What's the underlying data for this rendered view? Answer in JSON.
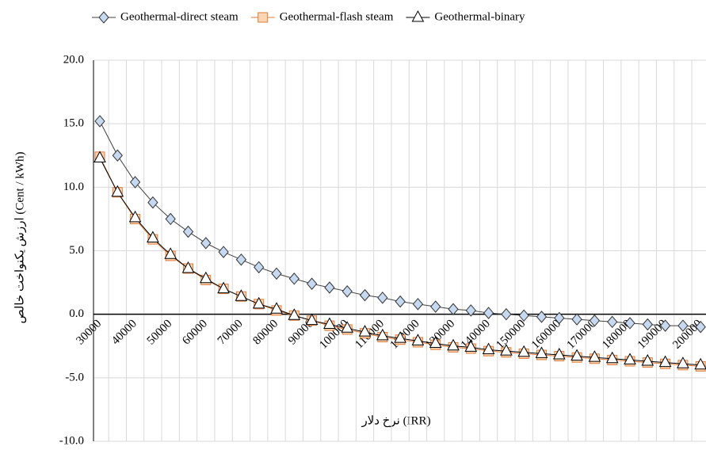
{
  "chart_data": {
    "type": "line",
    "x_label": "نرخ دلار (IRR)",
    "y_label": "ارزش یکنواخت خالص (Cent / kWh)",
    "categories": [
      "30000",
      null,
      "40000",
      null,
      "50000",
      null,
      "60000",
      null,
      "70000",
      null,
      "80000",
      null,
      "90000",
      null,
      "100000",
      null,
      "110000",
      null,
      "120000",
      null,
      "130000",
      null,
      "140000",
      null,
      "150000",
      null,
      "160000",
      null,
      "170000",
      null,
      "180000",
      null,
      "190000",
      null,
      "200000"
    ],
    "series": [
      {
        "name": "Geothermal-direct steam",
        "color": "#404040",
        "marker": "diamond",
        "marker_fill": "#c6d9f0",
        "values": [
          15.2,
          12.5,
          10.4,
          8.8,
          7.5,
          6.5,
          5.6,
          4.9,
          4.3,
          3.7,
          3.2,
          2.8,
          2.4,
          2.1,
          1.8,
          1.5,
          1.3,
          1.0,
          0.8,
          0.6,
          0.4,
          0.3,
          0.1,
          0.0,
          -0.1,
          -0.2,
          -0.3,
          -0.4,
          -0.5,
          -0.6,
          -0.7,
          -0.8,
          -0.9,
          -0.9,
          -1.0
        ]
      },
      {
        "name": "Geothermal-flash steam",
        "color": "#e07b39",
        "marker": "square",
        "marker_fill": "#fcd5b4",
        "values": [
          12.4,
          9.6,
          7.5,
          5.9,
          4.6,
          3.6,
          2.7,
          2.0,
          1.4,
          0.8,
          0.3,
          -0.1,
          -0.5,
          -0.9,
          -1.2,
          -1.5,
          -1.8,
          -2.0,
          -2.2,
          -2.4,
          -2.6,
          -2.7,
          -2.9,
          -3.0,
          -3.1,
          -3.2,
          -3.3,
          -3.4,
          -3.5,
          -3.6,
          -3.7,
          -3.8,
          -3.9,
          -4.0,
          -4.1
        ]
      },
      {
        "name": "Geothermal-binary",
        "color": "#000000",
        "marker": "triangle",
        "marker_fill": "#ffffff",
        "values": [
          12.3,
          9.6,
          7.6,
          6.0,
          4.7,
          3.6,
          2.8,
          2.0,
          1.4,
          0.8,
          0.4,
          -0.1,
          -0.5,
          -0.8,
          -1.1,
          -1.4,
          -1.7,
          -1.9,
          -2.1,
          -2.3,
          -2.5,
          -2.6,
          -2.8,
          -2.9,
          -3.0,
          -3.1,
          -3.2,
          -3.3,
          -3.4,
          -3.5,
          -3.6,
          -3.7,
          -3.8,
          -3.9,
          -4.0
        ]
      }
    ],
    "ylim": [
      -10,
      20
    ],
    "yticks": [
      {
        "value": -10,
        "label": "-10.0"
      },
      {
        "value": -5,
        "label": "-5.0"
      },
      {
        "value": 0,
        "label": "0.0"
      },
      {
        "value": 5,
        "label": "5.0"
      },
      {
        "value": 10,
        "label": "10.0"
      },
      {
        "value": 15,
        "label": "15.0"
      },
      {
        "value": 20,
        "label": "20.0"
      }
    ],
    "grid": true,
    "legend": "top"
  }
}
